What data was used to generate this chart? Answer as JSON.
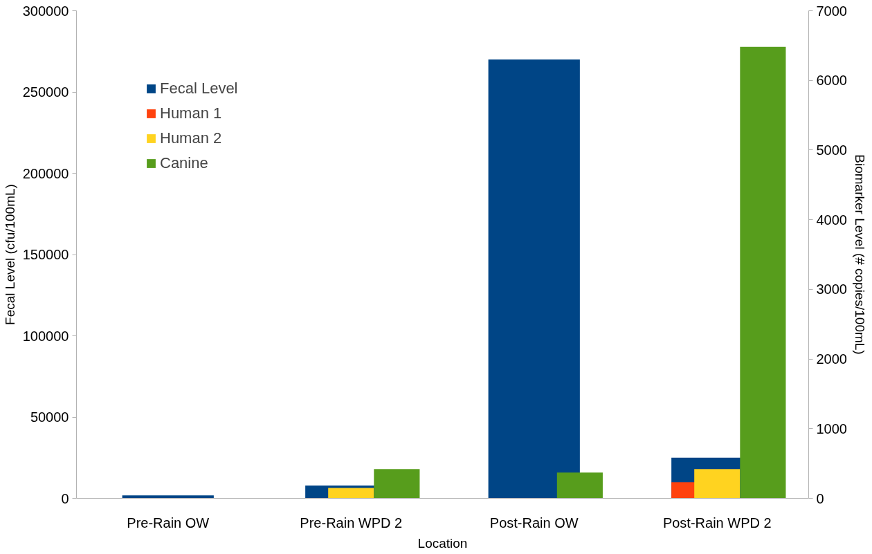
{
  "chart_data": {
    "type": "bar",
    "xlabel": "Location",
    "ylabel": "Fecal Level (cfu/100mL)",
    "y2label": "Biomarker Level (# copies/100mL)",
    "categories": [
      "Pre-Rain OW",
      "Pre-Rain WPD 2",
      "Post-Rain OW",
      "Post-Rain WPD 2"
    ],
    "series": [
      {
        "name": "Fecal Level",
        "color": "#004586",
        "values": [
          1800,
          7900,
          270000,
          25000
        ]
      },
      {
        "name": "Human 1",
        "color": "#ff420e",
        "values": [
          0,
          0,
          0,
          230
        ],
        "axis": "y2"
      },
      {
        "name": "Human 2",
        "color": "#ffd320",
        "values": [
          0,
          150,
          0,
          420
        ],
        "axis": "y2"
      },
      {
        "name": "Canine",
        "color": "#579d1c",
        "values": [
          0,
          420,
          370,
          6480
        ],
        "axis": "y2"
      }
    ],
    "ylim": [
      0,
      300000
    ],
    "yticks": [
      0,
      50000,
      100000,
      150000,
      200000,
      250000,
      300000
    ],
    "y2lim": [
      0,
      7000
    ],
    "y2ticks": [
      0,
      1000,
      2000,
      3000,
      4000,
      5000,
      6000,
      7000
    ],
    "grid": false,
    "legend": "top left"
  }
}
